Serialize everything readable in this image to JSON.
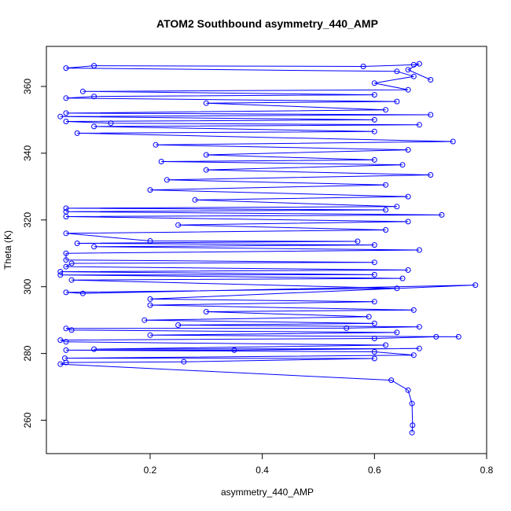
{
  "chart_data": {
    "type": "line",
    "title": "ATOM2 Southbound asymmetry_440_AMP",
    "xlabel": "asymmetry_440_AMP",
    "ylabel": "Theta (K)",
    "xlim": [
      0.015,
      0.8
    ],
    "ylim": [
      250,
      372
    ],
    "xticks": [
      "0.2",
      "0.4",
      "0.6",
      "0.8"
    ],
    "yticks": [
      "260",
      "280",
      "300",
      "320",
      "340",
      "360"
    ],
    "grid": false,
    "legend": "none",
    "series": [
      {
        "color": "#0000ff",
        "marker": "open-circle",
        "points": [
          [
            0.667,
            256.3
          ],
          [
            0.668,
            258.5
          ],
          [
            0.667,
            265.0
          ],
          [
            0.66,
            269.0
          ],
          [
            0.63,
            272.0
          ],
          [
            0.04,
            276.8
          ],
          [
            0.05,
            277.3
          ],
          [
            0.26,
            277.5
          ],
          [
            0.6,
            278.5
          ],
          [
            0.048,
            278.6
          ],
          [
            0.67,
            279.5
          ],
          [
            0.6,
            280.5
          ],
          [
            0.05,
            281.0
          ],
          [
            0.35,
            281.0
          ],
          [
            0.68,
            281.5
          ],
          [
            0.1,
            281.3
          ],
          [
            0.62,
            282.5
          ],
          [
            0.05,
            283.5
          ],
          [
            0.04,
            284.0
          ],
          [
            0.6,
            284.5
          ],
          [
            0.71,
            285.0
          ],
          [
            0.75,
            285.0
          ],
          [
            0.2,
            285.5
          ],
          [
            0.64,
            286.3
          ],
          [
            0.06,
            287.0
          ],
          [
            0.05,
            287.5
          ],
          [
            0.55,
            287.6
          ],
          [
            0.68,
            288.0
          ],
          [
            0.25,
            288.5
          ],
          [
            0.6,
            289.0
          ],
          [
            0.19,
            290.0
          ],
          [
            0.59,
            291.0
          ],
          [
            0.3,
            292.5
          ],
          [
            0.67,
            293.0
          ],
          [
            0.2,
            294.5
          ],
          [
            0.6,
            295.5
          ],
          [
            0.2,
            296.3
          ],
          [
            0.78,
            300.5
          ],
          [
            0.08,
            298.0
          ],
          [
            0.05,
            298.3
          ],
          [
            0.64,
            299.5
          ],
          [
            0.06,
            302.0
          ],
          [
            0.65,
            302.5
          ],
          [
            0.04,
            303.5
          ],
          [
            0.6,
            303.6
          ],
          [
            0.04,
            304.5
          ],
          [
            0.66,
            305.0
          ],
          [
            0.05,
            306.0
          ],
          [
            0.06,
            307.0
          ],
          [
            0.6,
            307.3
          ],
          [
            0.05,
            308.0
          ],
          [
            0.05,
            310.0
          ],
          [
            0.68,
            311.0
          ],
          [
            0.1,
            312.0
          ],
          [
            0.6,
            312.5
          ],
          [
            0.07,
            313.0
          ],
          [
            0.57,
            313.6
          ],
          [
            0.2,
            313.7
          ],
          [
            0.05,
            316.0
          ],
          [
            0.62,
            317.0
          ],
          [
            0.25,
            318.5
          ],
          [
            0.66,
            319.5
          ],
          [
            0.05,
            321.0
          ],
          [
            0.72,
            321.5
          ],
          [
            0.05,
            322.5
          ],
          [
            0.62,
            323.0
          ],
          [
            0.05,
            323.5
          ],
          [
            0.64,
            324.0
          ],
          [
            0.28,
            326.0
          ],
          [
            0.66,
            327.0
          ],
          [
            0.2,
            329.0
          ],
          [
            0.62,
            330.5
          ],
          [
            0.23,
            332.0
          ],
          [
            0.7,
            333.5
          ],
          [
            0.3,
            335.0
          ],
          [
            0.65,
            336.5
          ],
          [
            0.22,
            337.5
          ],
          [
            0.6,
            338.0
          ],
          [
            0.3,
            339.5
          ],
          [
            0.66,
            341.0
          ],
          [
            0.21,
            342.5
          ],
          [
            0.74,
            343.5
          ],
          [
            0.07,
            346.0
          ],
          [
            0.6,
            346.5
          ],
          [
            0.1,
            348.0
          ],
          [
            0.68,
            348.5
          ],
          [
            0.13,
            349.0
          ],
          [
            0.05,
            349.5
          ],
          [
            0.6,
            350.0
          ],
          [
            0.04,
            351.0
          ],
          [
            0.7,
            351.5
          ],
          [
            0.05,
            352.0
          ],
          [
            0.62,
            353.0
          ],
          [
            0.3,
            355.0
          ],
          [
            0.64,
            355.5
          ],
          [
            0.05,
            356.5
          ],
          [
            0.1,
            357.0
          ],
          [
            0.6,
            357.5
          ],
          [
            0.08,
            358.5
          ],
          [
            0.66,
            359.0
          ],
          [
            0.6,
            361.0
          ],
          [
            0.67,
            363.0
          ],
          [
            0.64,
            364.5
          ],
          [
            0.05,
            365.5
          ],
          [
            0.1,
            366.2
          ],
          [
            0.58,
            366.0
          ],
          [
            0.67,
            366.5
          ],
          [
            0.68,
            366.8
          ],
          [
            0.66,
            365.0
          ],
          [
            0.7,
            362.0
          ]
        ]
      }
    ]
  }
}
